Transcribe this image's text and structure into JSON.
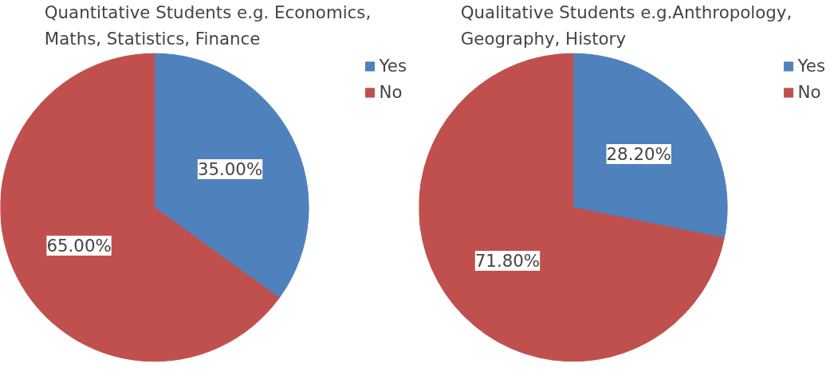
{
  "chart_data": [
    {
      "type": "pie",
      "title": "Quantitative Students e.g. Economics, Maths, Statistics, Finance",
      "categories": [
        "Yes",
        "No"
      ],
      "values": [
        35,
        65
      ],
      "colors": [
        "#4f81bd",
        "#c0504d"
      ],
      "value_labels": [
        "35.00%",
        "65.00%"
      ],
      "legend": "top right"
    },
    {
      "type": "pie",
      "title": "Qualitative Students e.g.Anthropology, Geography, History",
      "categories": [
        "Yes",
        "No"
      ],
      "values": [
        28.2,
        71.8
      ],
      "colors": [
        "#4f81bd",
        "#c0504d"
      ],
      "value_labels": [
        "28.20%",
        "71.80%"
      ],
      "legend": "top right"
    }
  ]
}
